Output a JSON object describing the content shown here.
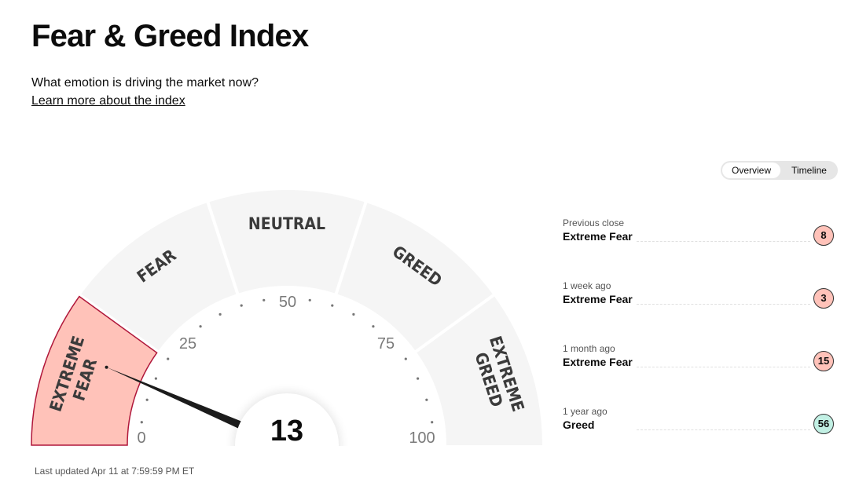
{
  "header": {
    "title": "Fear & Greed Index",
    "subtitle": "What emotion is driving the market now?",
    "learn_link": "Learn more about the index"
  },
  "view_toggle": {
    "options": [
      "Overview",
      "Timeline"
    ],
    "selected": "Overview"
  },
  "gauge": {
    "value": "13",
    "value_num": 13,
    "min": 0,
    "max": 100,
    "segments": [
      "EXTREME FEAR",
      "FEAR",
      "NEUTRAL",
      "GREED",
      "EXTREME GREED"
    ],
    "active_segment": "EXTREME FEAR",
    "tick_labels": [
      "0",
      "25",
      "50",
      "75",
      "100"
    ]
  },
  "history": [
    {
      "label": "Previous close",
      "rating": "Extreme Fear",
      "value": "8"
    },
    {
      "label": "1 week ago",
      "rating": "Extreme Fear",
      "value": "3"
    },
    {
      "label": "1 month ago",
      "rating": "Extreme Fear",
      "value": "15"
    },
    {
      "label": "1 year ago",
      "rating": "Greed",
      "value": "56"
    }
  ],
  "footer": {
    "last_updated": "Last updated Apr 11 at 7:59:59 PM ET"
  },
  "colors": {
    "active_fill": "#ffc2b9",
    "active_stroke": "#b0173a",
    "segment_fill": "#f5f5f5",
    "badge_fear": "#ffc2b9",
    "badge_greed": "#c2f0e4",
    "needle": "#1c1c1c"
  }
}
